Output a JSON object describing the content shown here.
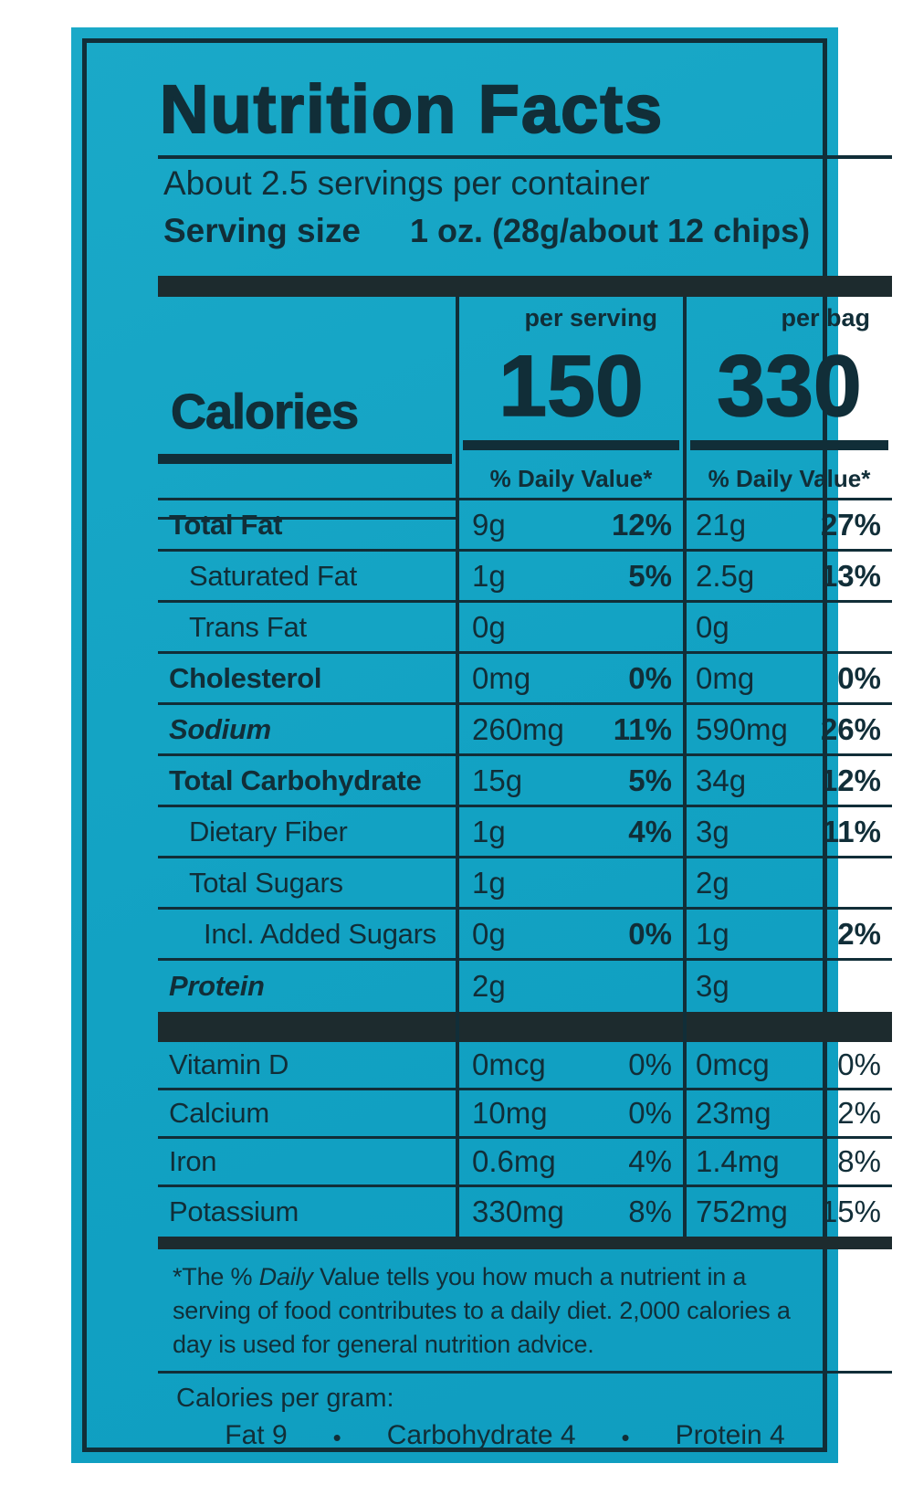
{
  "nutrition_label": {
    "title": "Nutrition Facts",
    "servings_per_container": "About 2.5 servings per container",
    "serving_size": {
      "label": "Serving size",
      "value": "1 oz. (28g/about 12 chips)"
    },
    "column_headers": {
      "per_serving": "per serving",
      "per_bag": "per bag"
    },
    "calories": {
      "label": "Calories",
      "per_serving": "150",
      "per_bag": "330"
    },
    "daily_value_header": "% Daily Value*",
    "macro_rows": [
      {
        "name": "Total Fat",
        "bold": true,
        "italic": false,
        "indent": 0,
        "ps_amount": "9g",
        "ps_dv": "12%",
        "pb_amount": "21g",
        "pb_dv": "27%"
      },
      {
        "name": "Saturated Fat",
        "bold": false,
        "italic": false,
        "indent": 1,
        "ps_amount": "1g",
        "ps_dv": "5%",
        "pb_amount": "2.5g",
        "pb_dv": "13%"
      },
      {
        "name": "Trans Fat",
        "bold": false,
        "italic": false,
        "indent": 1,
        "ps_amount": "0g",
        "ps_dv": "",
        "pb_amount": "0g",
        "pb_dv": ""
      },
      {
        "name": "Cholesterol",
        "bold": true,
        "italic": false,
        "indent": 0,
        "ps_amount": "0mg",
        "ps_dv": "0%",
        "pb_amount": "0mg",
        "pb_dv": "0%"
      },
      {
        "name": "Sodium",
        "bold": true,
        "italic": true,
        "indent": 0,
        "ps_amount": "260mg",
        "ps_dv": "11%",
        "pb_amount": "590mg",
        "pb_dv": "26%"
      },
      {
        "name": "Total Carbohydrate",
        "bold": true,
        "italic": false,
        "indent": 0,
        "ps_amount": "15g",
        "ps_dv": "5%",
        "pb_amount": "34g",
        "pb_dv": "12%"
      },
      {
        "name": "Dietary Fiber",
        "bold": false,
        "italic": false,
        "indent": 1,
        "ps_amount": "1g",
        "ps_dv": "4%",
        "pb_amount": "3g",
        "pb_dv": "11%"
      },
      {
        "name": "Total Sugars",
        "bold": false,
        "italic": false,
        "indent": 1,
        "ps_amount": "1g",
        "ps_dv": "",
        "pb_amount": "2g",
        "pb_dv": ""
      },
      {
        "name": "Incl. Added Sugars",
        "bold": false,
        "italic": false,
        "indent": 2,
        "ps_amount": "0g",
        "ps_dv": "0%",
        "pb_amount": "1g",
        "pb_dv": "2%"
      },
      {
        "name": "Protein",
        "bold": true,
        "italic": true,
        "indent": 0,
        "ps_amount": "2g",
        "ps_dv": "",
        "pb_amount": "3g",
        "pb_dv": ""
      }
    ],
    "micro_rows": [
      {
        "name": "Vitamin D",
        "bold": false,
        "italic": false,
        "indent": 0,
        "ps_amount": "0mcg",
        "ps_dv": "0%",
        "pb_amount": "0mcg",
        "pb_dv": "0%"
      },
      {
        "name": "Calcium",
        "bold": false,
        "italic": false,
        "indent": 0,
        "ps_amount": "10mg",
        "ps_dv": "0%",
        "pb_amount": "23mg",
        "pb_dv": "2%"
      },
      {
        "name": "Iron",
        "bold": false,
        "italic": false,
        "indent": 0,
        "ps_amount": "0.6mg",
        "ps_dv": "4%",
        "pb_amount": "1.4mg",
        "pb_dv": "8%"
      },
      {
        "name": "Potassium",
        "bold": false,
        "italic": false,
        "indent": 0,
        "ps_amount": "330mg",
        "ps_dv": "8%",
        "pb_amount": "752mg",
        "pb_dv": "15%"
      }
    ],
    "footnote": {
      "line1_prefix": "*The % ",
      "line1_italic": "Daily",
      "line1_suffix": " Value tells you how much a nutrient in a",
      "line2": "serving of food contributes to a daily diet. 2,000 calories a",
      "line3": "day is used for general nutrition advice."
    },
    "calories_per_gram": {
      "label": "Calories per gram:",
      "bullet": "•",
      "items": [
        "Fat 9",
        "Carbohydrate 4",
        "Protein 4"
      ]
    },
    "colors": {
      "label_background_teal": "#15a5c5",
      "ink": "#112e38",
      "bar": "#1d2b2e",
      "page_background": "#ffffff"
    }
  }
}
